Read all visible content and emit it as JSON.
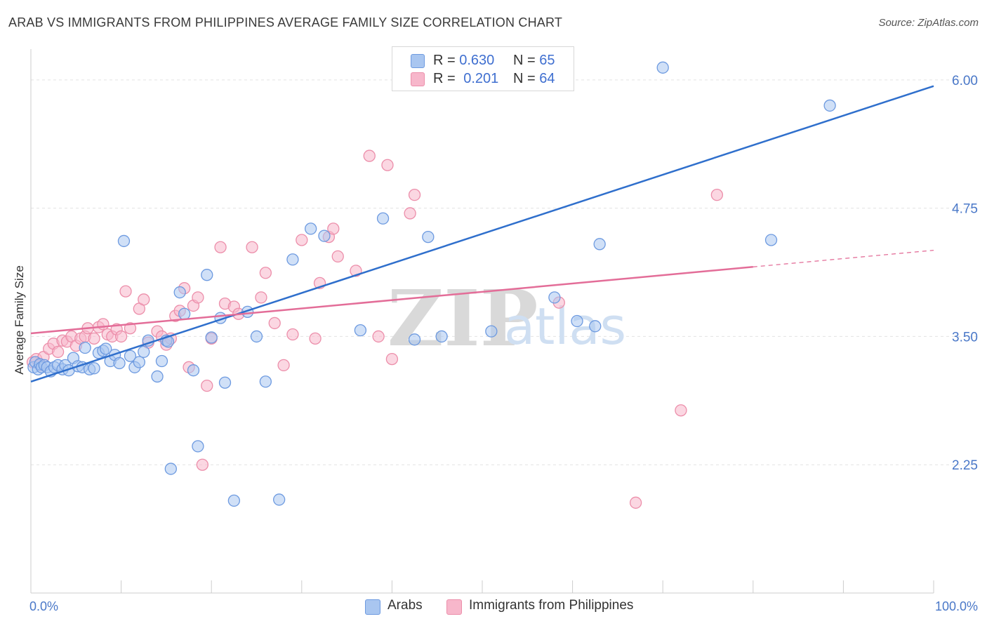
{
  "header": {
    "title": "ARAB VS IMMIGRANTS FROM PHILIPPINES AVERAGE FAMILY SIZE CORRELATION CHART",
    "source": "Source: ZipAtlas.com"
  },
  "watermark": {
    "zip": "ZIP",
    "atlas": "atlas"
  },
  "legend": {
    "items": [
      {
        "r_label": "R =",
        "r_value": "0.630",
        "n_label": "N =",
        "n_value": "65",
        "color": "#a9c6f0"
      },
      {
        "r_label": "R =",
        "r_value": "0.201",
        "n_label": "N =",
        "n_value": "64",
        "color": "#f7b7cb"
      }
    ]
  },
  "colors": {
    "arabs_fill": "#a9c6f0",
    "arabs_stroke": "#6d9ae0",
    "arabs_line": "#2f6fcc",
    "phil_fill": "#f7b7cb",
    "phil_stroke": "#ec8eaa",
    "phil_line": "#e36d98",
    "grid": "#e3e3e3",
    "tick_text": "#4a78c8"
  },
  "chart_data": {
    "type": "scatter",
    "title": "ARAB VS IMMIGRANTS FROM PHILIPPINES AVERAGE FAMILY SIZE CORRELATION CHART",
    "xlabel": "",
    "ylabel": "Average Family Size",
    "xlim": [
      0,
      100
    ],
    "ylim": [
      1.0,
      6.3
    ],
    "x_tick_labels": [
      "0.0%",
      "100.0%"
    ],
    "y_ticks": [
      2.25,
      3.5,
      4.75,
      6.0
    ],
    "y_tick_labels": [
      "2.25",
      "3.50",
      "4.75",
      "6.00"
    ],
    "grid": true,
    "legend_position": "bottom",
    "series": [
      {
        "name": "Arabs",
        "points": [
          [
            0.3,
            3.2
          ],
          [
            0.5,
            3.25
          ],
          [
            0.8,
            3.18
          ],
          [
            1.0,
            3.23
          ],
          [
            1.2,
            3.2
          ],
          [
            1.5,
            3.22
          ],
          [
            1.8,
            3.2
          ],
          [
            2.2,
            3.16
          ],
          [
            2.6,
            3.2
          ],
          [
            3.0,
            3.22
          ],
          [
            3.5,
            3.18
          ],
          [
            3.8,
            3.22
          ],
          [
            4.2,
            3.17
          ],
          [
            4.7,
            3.29
          ],
          [
            5.2,
            3.21
          ],
          [
            5.7,
            3.2
          ],
          [
            6.0,
            3.39
          ],
          [
            6.5,
            3.18
          ],
          [
            7.0,
            3.19
          ],
          [
            7.5,
            3.34
          ],
          [
            8.0,
            3.36
          ],
          [
            8.3,
            3.38
          ],
          [
            8.8,
            3.26
          ],
          [
            9.3,
            3.32
          ],
          [
            9.8,
            3.24
          ],
          [
            10.3,
            4.43
          ],
          [
            11.0,
            3.31
          ],
          [
            11.5,
            3.2
          ],
          [
            12.0,
            3.25
          ],
          [
            12.5,
            3.35
          ],
          [
            13.0,
            3.46
          ],
          [
            14.0,
            3.11
          ],
          [
            14.5,
            3.26
          ],
          [
            15.0,
            3.46
          ],
          [
            15.5,
            2.21
          ],
          [
            16.5,
            3.93
          ],
          [
            17.0,
            3.72
          ],
          [
            18.0,
            3.17
          ],
          [
            19.5,
            4.1
          ],
          [
            20.0,
            3.49
          ],
          [
            21.0,
            3.68
          ],
          [
            21.5,
            3.05
          ],
          [
            22.5,
            1.9
          ],
          [
            24.0,
            3.74
          ],
          [
            25.0,
            3.5
          ],
          [
            26.0,
            3.06
          ],
          [
            27.5,
            1.91
          ],
          [
            29.0,
            4.25
          ],
          [
            31.0,
            4.55
          ],
          [
            32.5,
            4.48
          ],
          [
            36.5,
            3.56
          ],
          [
            39.0,
            4.65
          ],
          [
            42.5,
            3.47
          ],
          [
            44.0,
            4.47
          ],
          [
            45.5,
            3.5
          ],
          [
            51.0,
            3.55
          ],
          [
            58.0,
            3.88
          ],
          [
            60.5,
            3.65
          ],
          [
            62.5,
            3.6
          ],
          [
            63.0,
            4.4
          ],
          [
            70.0,
            6.12
          ],
          [
            82.0,
            4.44
          ],
          [
            88.5,
            5.75
          ],
          [
            18.5,
            2.43
          ],
          [
            15.2,
            3.45
          ]
        ]
      },
      {
        "name": "Immigrants from Philippines",
        "points": [
          [
            0.2,
            3.25
          ],
          [
            0.6,
            3.28
          ],
          [
            1.0,
            3.22
          ],
          [
            1.4,
            3.3
          ],
          [
            2.0,
            3.38
          ],
          [
            2.5,
            3.43
          ],
          [
            3.0,
            3.35
          ],
          [
            3.5,
            3.46
          ],
          [
            4.0,
            3.45
          ],
          [
            4.5,
            3.5
          ],
          [
            5.0,
            3.41
          ],
          [
            5.5,
            3.48
          ],
          [
            6.0,
            3.5
          ],
          [
            6.3,
            3.58
          ],
          [
            7.0,
            3.48
          ],
          [
            7.5,
            3.59
          ],
          [
            8.0,
            3.62
          ],
          [
            8.5,
            3.52
          ],
          [
            9.0,
            3.5
          ],
          [
            9.5,
            3.57
          ],
          [
            10.0,
            3.5
          ],
          [
            10.5,
            3.94
          ],
          [
            11.0,
            3.58
          ],
          [
            12.0,
            3.77
          ],
          [
            12.5,
            3.86
          ],
          [
            13.0,
            3.44
          ],
          [
            14.0,
            3.55
          ],
          [
            14.5,
            3.5
          ],
          [
            15.0,
            3.42
          ],
          [
            15.5,
            3.48
          ],
          [
            16.0,
            3.7
          ],
          [
            16.5,
            3.75
          ],
          [
            17.0,
            3.97
          ],
          [
            17.5,
            3.2
          ],
          [
            18.0,
            3.8
          ],
          [
            18.5,
            3.88
          ],
          [
            19.0,
            2.25
          ],
          [
            19.5,
            3.02
          ],
          [
            20.0,
            3.48
          ],
          [
            21.0,
            4.37
          ],
          [
            21.5,
            3.82
          ],
          [
            22.5,
            3.79
          ],
          [
            23.0,
            3.72
          ],
          [
            24.5,
            4.37
          ],
          [
            25.5,
            3.88
          ],
          [
            26.0,
            4.12
          ],
          [
            27.0,
            3.63
          ],
          [
            28.0,
            3.22
          ],
          [
            29.0,
            3.52
          ],
          [
            30.0,
            4.44
          ],
          [
            31.5,
            3.48
          ],
          [
            32.0,
            4.02
          ],
          [
            33.0,
            4.47
          ],
          [
            33.5,
            4.55
          ],
          [
            34.0,
            4.28
          ],
          [
            36.0,
            4.14
          ],
          [
            37.5,
            5.26
          ],
          [
            38.5,
            3.5
          ],
          [
            39.5,
            5.17
          ],
          [
            40.0,
            3.28
          ],
          [
            42.0,
            4.7
          ],
          [
            42.5,
            4.88
          ],
          [
            58.5,
            3.83
          ],
          [
            67.0,
            1.88
          ]
        ],
        "extra_points": [
          [
            72.0,
            2.78
          ],
          [
            76.0,
            4.88
          ]
        ]
      }
    ],
    "trendlines": [
      {
        "name": "Arabs",
        "x0": 0,
        "y0": 3.06,
        "x1": 100,
        "y1": 5.94,
        "dashed_from": null
      },
      {
        "name": "Immigrants from Philippines",
        "x0": 0,
        "y0": 3.53,
        "x1": 100,
        "y1": 4.34,
        "dashed_from": 80
      }
    ]
  },
  "bottom_legend": {
    "items": [
      {
        "label": "Arabs",
        "color": "#a9c6f0"
      },
      {
        "label": "Immigrants from Philippines",
        "color": "#f7b7cb"
      }
    ]
  }
}
